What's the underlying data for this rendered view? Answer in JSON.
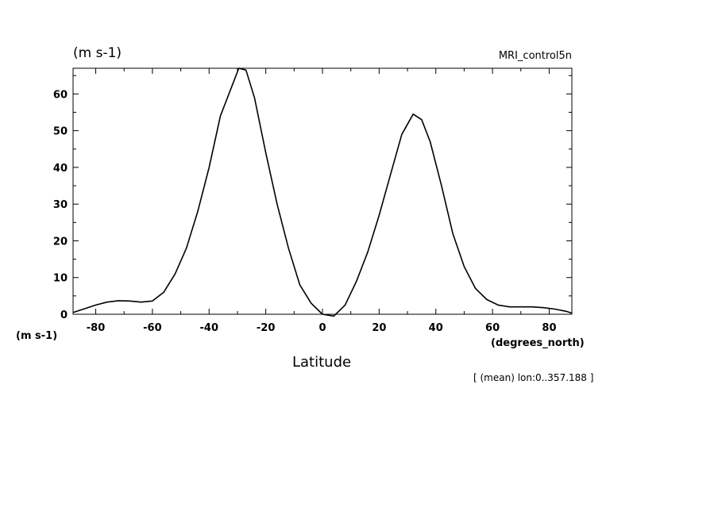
{
  "header": {
    "units_title": "(m s-1)",
    "run_title": "MRI_control5n"
  },
  "axes": {
    "y_units": "(m s-1)",
    "x_units": "(degrees_north)",
    "xlabel": "Latitude",
    "footnote": "[ (mean) lon:0..357.188 ]"
  },
  "chart_data": {
    "type": "line",
    "title": "MRI_control5n",
    "xlabel": "Latitude",
    "ylabel": "(m s-1)",
    "xlim": [
      -88,
      88
    ],
    "ylim": [
      0,
      67
    ],
    "x_ticks": [
      -80,
      -60,
      -40,
      -20,
      0,
      20,
      40,
      60,
      80
    ],
    "y_ticks": [
      0,
      10,
      20,
      30,
      40,
      50,
      60
    ],
    "x_tick_labels": [
      "-80",
      "-60",
      "-40",
      "-20",
      "0",
      "20",
      "40",
      "60",
      "80"
    ],
    "y_tick_labels": [
      "0",
      "10",
      "20",
      "30",
      "40",
      "50",
      "60"
    ],
    "grid": false,
    "series": [
      {
        "x": [
          -88,
          -84,
          -80,
          -76,
          -72,
          -68,
          -64,
          -60,
          -56,
          -52,
          -48,
          -44,
          -40,
          -36,
          -32,
          -29.5,
          -27,
          -24,
          -20,
          -16,
          -12,
          -8,
          -4,
          0,
          4,
          8,
          12,
          16,
          20,
          24,
          28,
          32,
          35,
          38,
          42,
          46,
          50,
          54,
          58,
          62,
          66,
          70,
          74,
          78,
          82,
          86,
          88
        ],
        "y": [
          0.5,
          1.5,
          2.5,
          3.3,
          3.7,
          3.6,
          3.3,
          3.6,
          6,
          11,
          18,
          28,
          40,
          54,
          62,
          67,
          66.5,
          59,
          44,
          30,
          18,
          8,
          3,
          0,
          -0.5,
          2.5,
          9,
          17,
          27,
          38,
          49,
          54.5,
          53,
          47,
          35,
          22,
          13,
          7,
          4,
          2.5,
          2,
          2,
          2,
          1.8,
          1.4,
          0.8,
          0.3
        ]
      }
    ]
  }
}
